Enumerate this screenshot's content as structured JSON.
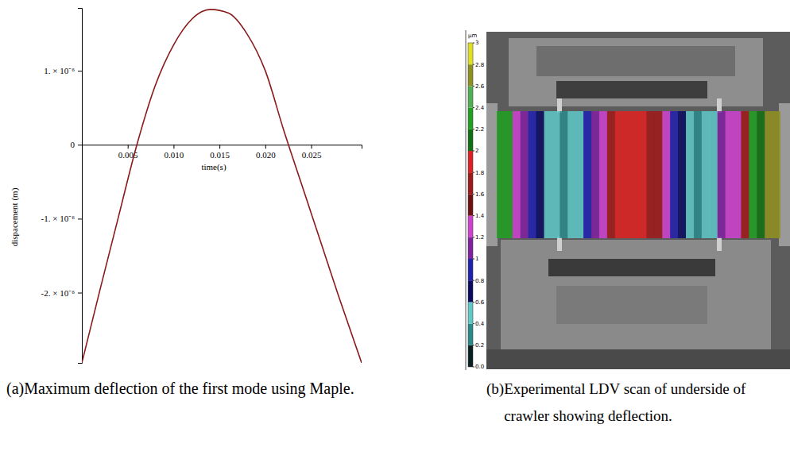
{
  "chart_data": [
    {
      "type": "line",
      "caption": "(a) Maximum deflection of the first mode using Maple.",
      "xlabel": "time(s)",
      "ylabel": "dispacement (m)",
      "x": [
        0,
        0.002,
        0.004,
        0.006,
        0.008,
        0.01,
        0.012,
        0.014,
        0.016,
        0.018,
        0.02,
        0.022,
        0.024,
        0.026,
        0.028,
        0.0305
      ],
      "values": [
        -2.95e-06,
        -1.95e-06,
        -9.7e-07,
        0.0,
        8e-07,
        1.35e-06,
        1.7e-06,
        1.83e-06,
        1.78e-06,
        1.5e-06,
        1e-06,
        2e-07,
        -5.5e-07,
        -1.3e-06,
        -2.05e-06,
        -2.95e-06
      ],
      "color": "#8b1a1a",
      "xlim": [
        0,
        0.0305
      ],
      "ylim": [
        -2.95e-06,
        1.85e-06
      ],
      "xticks": [
        0.005,
        {
          "value": 0.01,
          "label": "0.010"
        },
        0.015,
        {
          "value": 0.02,
          "label": "0.020"
        },
        0.025
      ],
      "yticks": [
        {
          "value": -2e-06,
          "label": "-2. × 10⁻⁶"
        },
        {
          "value": -1e-06,
          "label": "-1. × 10⁻⁶"
        },
        0,
        {
          "value": 1e-06,
          "label": "1. × 10⁻⁶"
        }
      ]
    },
    {
      "type": "heatmap",
      "caption": "(b) Experimental LDV scan of underside of crawler showing deflection.",
      "cells": [
        [
          2.3,
          2.3,
          1.3,
          1.1,
          0.9,
          0.7,
          0.5,
          0.5,
          0.3,
          0.5,
          0.5,
          0.9,
          1.1,
          1.3,
          1.7,
          1.8,
          1.9,
          1.9,
          1.8,
          1.7,
          1.6,
          1.3,
          0.9,
          0.7,
          0.5,
          0.3,
          0.5,
          0.5,
          1.1,
          1.3,
          1.2,
          1.7,
          2.3,
          2.1,
          2.7,
          2.7
        ]
      ],
      "colorbar": {
        "label": "µm",
        "range": [
          0,
          3
        ],
        "ticks": [
          {
            "value": 0,
            "label": "0.0"
          },
          0.2,
          0.4,
          0.6,
          0.8,
          1,
          1.2,
          1.4,
          1.6,
          1.8,
          2,
          2.2,
          2.4,
          2.6,
          2.8,
          3
        ]
      }
    }
  ]
}
